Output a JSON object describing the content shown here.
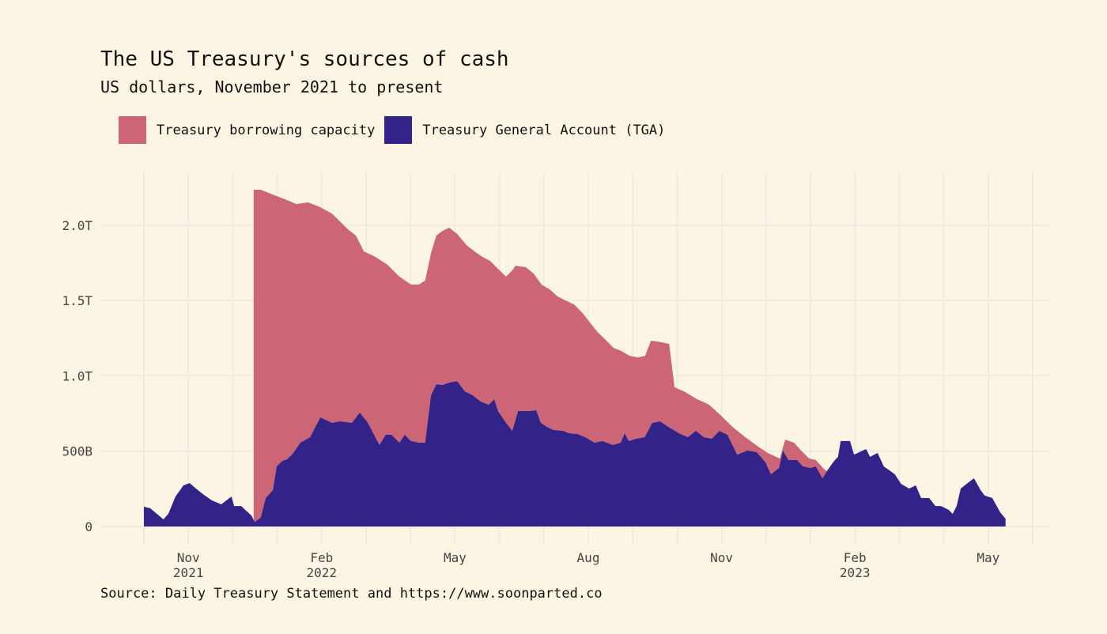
{
  "header": {
    "title": "The US Treasury's sources of cash",
    "subtitle": "US dollars, November 2021 to present"
  },
  "legend": [
    {
      "label": "Treasury borrowing capacity",
      "color": "#cc6677"
    },
    {
      "label": "Treasury General Account (TGA)",
      "color": "#332288"
    }
  ],
  "source": "Source: Daily Treasury Statement and https://www.soonparted.co",
  "chart_data": {
    "type": "area",
    "stacked": true,
    "title": "The US Treasury's sources of cash",
    "subtitle": "US dollars, November 2021 to present",
    "xlabel": "",
    "ylabel": "",
    "x_units": "months since 2021-10-01",
    "x_range": [
      -1,
      20.35
    ],
    "ylim": [
      0,
      2350
    ],
    "y_units": "billions USD",
    "grid": true,
    "legend_position": "top-left",
    "y_ticks": [
      {
        "value": 0,
        "label": "0"
      },
      {
        "value": 500,
        "label": "500B"
      },
      {
        "value": 1000,
        "label": "1.0T"
      },
      {
        "value": 1500,
        "label": "1.5T"
      },
      {
        "value": 2000,
        "label": "2.0T"
      }
    ],
    "x_ticks": [
      {
        "value": 1,
        "label": "Nov",
        "sublabel": "2021"
      },
      {
        "value": 4,
        "label": "Feb",
        "sublabel": "2022"
      },
      {
        "value": 7,
        "label": "May",
        "sublabel": ""
      },
      {
        "value": 10,
        "label": "Aug",
        "sublabel": ""
      },
      {
        "value": 13,
        "label": "Nov",
        "sublabel": ""
      },
      {
        "value": 16,
        "label": "Feb",
        "sublabel": "2023"
      },
      {
        "value": 19,
        "label": "May",
        "sublabel": ""
      }
    ],
    "x_gridlines": [
      -1,
      0,
      1,
      2,
      3,
      4,
      5,
      6,
      7,
      8,
      9,
      10,
      11,
      12,
      13,
      14,
      15,
      16,
      17,
      18,
      19,
      20
    ],
    "series": [
      {
        "name": "Treasury General Account (TGA)",
        "color": "#332288",
        "role": "bottom",
        "points": [
          [
            0.0,
            131
          ],
          [
            0.14,
            121
          ],
          [
            0.44,
            47
          ],
          [
            0.55,
            84
          ],
          [
            0.71,
            199
          ],
          [
            0.89,
            273
          ],
          [
            1.03,
            288
          ],
          [
            1.17,
            252
          ],
          [
            1.35,
            210
          ],
          [
            1.53,
            173
          ],
          [
            1.74,
            147
          ],
          [
            1.97,
            199
          ],
          [
            2.03,
            136
          ],
          [
            2.19,
            136
          ],
          [
            2.28,
            110
          ],
          [
            2.42,
            73
          ],
          [
            2.49,
            31
          ],
          [
            2.63,
            58
          ],
          [
            2.74,
            189
          ],
          [
            2.9,
            241
          ],
          [
            2.99,
            399
          ],
          [
            3.11,
            435
          ],
          [
            3.22,
            446
          ],
          [
            3.35,
            483
          ],
          [
            3.52,
            556
          ],
          [
            3.74,
            593
          ],
          [
            3.97,
            724
          ],
          [
            4.23,
            688
          ],
          [
            4.41,
            698
          ],
          [
            4.68,
            688
          ],
          [
            4.86,
            756
          ],
          [
            5.04,
            688
          ],
          [
            5.16,
            619
          ],
          [
            5.3,
            541
          ],
          [
            5.44,
            609
          ],
          [
            5.57,
            609
          ],
          [
            5.75,
            556
          ],
          [
            5.87,
            609
          ],
          [
            6.01,
            567
          ],
          [
            6.19,
            556
          ],
          [
            6.33,
            556
          ],
          [
            6.46,
            871
          ],
          [
            6.58,
            944
          ],
          [
            6.72,
            939
          ],
          [
            6.87,
            955
          ],
          [
            7.05,
            965
          ],
          [
            7.22,
            897
          ],
          [
            7.4,
            871
          ],
          [
            7.58,
            829
          ],
          [
            7.76,
            808
          ],
          [
            7.88,
            844
          ],
          [
            7.97,
            766
          ],
          [
            8.15,
            688
          ],
          [
            8.29,
            635
          ],
          [
            8.42,
            766
          ],
          [
            8.65,
            766
          ],
          [
            8.83,
            771
          ],
          [
            8.93,
            688
          ],
          [
            9.07,
            661
          ],
          [
            9.22,
            640
          ],
          [
            9.43,
            635
          ],
          [
            9.57,
            619
          ],
          [
            9.75,
            614
          ],
          [
            9.93,
            593
          ],
          [
            10.14,
            556
          ],
          [
            10.32,
            567
          ],
          [
            10.55,
            541
          ],
          [
            10.73,
            556
          ],
          [
            10.82,
            619
          ],
          [
            10.91,
            567
          ],
          [
            11.09,
            583
          ],
          [
            11.27,
            593
          ],
          [
            11.44,
            688
          ],
          [
            11.62,
            698
          ],
          [
            11.8,
            661
          ],
          [
            12.04,
            619
          ],
          [
            12.24,
            593
          ],
          [
            12.42,
            635
          ],
          [
            12.6,
            593
          ],
          [
            12.78,
            583
          ],
          [
            12.95,
            635
          ],
          [
            13.13,
            609
          ],
          [
            13.35,
            477
          ],
          [
            13.58,
            504
          ],
          [
            13.79,
            493
          ],
          [
            13.99,
            425
          ],
          [
            14.11,
            346
          ],
          [
            14.29,
            388
          ],
          [
            14.38,
            504
          ],
          [
            14.5,
            441
          ],
          [
            14.7,
            441
          ],
          [
            14.83,
            399
          ],
          [
            15.0,
            388
          ],
          [
            15.12,
            399
          ],
          [
            15.27,
            320
          ],
          [
            15.37,
            367
          ],
          [
            15.52,
            430
          ],
          [
            15.62,
            462
          ],
          [
            15.68,
            567
          ],
          [
            15.89,
            567
          ],
          [
            15.98,
            477
          ],
          [
            16.1,
            493
          ],
          [
            16.25,
            514
          ],
          [
            16.34,
            462
          ],
          [
            16.51,
            488
          ],
          [
            16.65,
            399
          ],
          [
            16.78,
            372
          ],
          [
            16.9,
            346
          ],
          [
            17.04,
            283
          ],
          [
            17.22,
            252
          ],
          [
            17.37,
            273
          ],
          [
            17.49,
            189
          ],
          [
            17.67,
            189
          ],
          [
            17.81,
            136
          ],
          [
            17.94,
            136
          ],
          [
            18.11,
            110
          ],
          [
            18.2,
            84
          ],
          [
            18.29,
            136
          ],
          [
            18.38,
            252
          ],
          [
            18.56,
            294
          ],
          [
            18.68,
            320
          ],
          [
            18.83,
            241
          ],
          [
            18.92,
            205
          ],
          [
            19.09,
            189
          ],
          [
            19.27,
            94
          ],
          [
            19.39,
            52
          ]
        ]
      },
      {
        "name": "Treasury borrowing capacity",
        "color": "#cc6677",
        "role": "stacked_on_top",
        "total_points_description": "TGA + borrowing capacity (top edge of stack)",
        "total_points": [
          [
            2.47,
            2235
          ],
          [
            2.63,
            2235
          ],
          [
            2.9,
            2203
          ],
          [
            3.17,
            2172
          ],
          [
            3.43,
            2140
          ],
          [
            3.7,
            2151
          ],
          [
            3.97,
            2119
          ],
          [
            4.23,
            2077
          ],
          [
            4.41,
            2025
          ],
          [
            4.59,
            1972
          ],
          [
            4.77,
            1931
          ],
          [
            4.95,
            1826
          ],
          [
            5.21,
            1789
          ],
          [
            5.48,
            1737
          ],
          [
            5.75,
            1658
          ],
          [
            6.01,
            1606
          ],
          [
            6.19,
            1606
          ],
          [
            6.33,
            1632
          ],
          [
            6.46,
            1815
          ],
          [
            6.58,
            1931
          ],
          [
            6.72,
            1962
          ],
          [
            6.87,
            1983
          ],
          [
            7.05,
            1941
          ],
          [
            7.26,
            1867
          ],
          [
            7.44,
            1826
          ],
          [
            7.62,
            1789
          ],
          [
            7.79,
            1763
          ],
          [
            7.97,
            1710
          ],
          [
            8.15,
            1658
          ],
          [
            8.29,
            1700
          ],
          [
            8.36,
            1731
          ],
          [
            8.59,
            1721
          ],
          [
            8.77,
            1679
          ],
          [
            8.95,
            1605
          ],
          [
            9.13,
            1574
          ],
          [
            9.31,
            1527
          ],
          [
            9.49,
            1500
          ],
          [
            9.68,
            1474
          ],
          [
            9.86,
            1421
          ],
          [
            10.04,
            1353
          ],
          [
            10.21,
            1290
          ],
          [
            10.39,
            1238
          ],
          [
            10.57,
            1185
          ],
          [
            10.75,
            1164
          ],
          [
            10.93,
            1133
          ],
          [
            11.11,
            1122
          ],
          [
            11.28,
            1133
          ],
          [
            11.41,
            1233
          ],
          [
            11.55,
            1228
          ],
          [
            11.82,
            1212
          ],
          [
            11.94,
            925
          ],
          [
            12.17,
            894
          ],
          [
            12.44,
            846
          ],
          [
            12.71,
            810
          ],
          [
            12.97,
            741
          ],
          [
            13.24,
            662
          ],
          [
            13.51,
            598
          ],
          [
            13.77,
            541
          ],
          [
            14.04,
            488
          ],
          [
            14.31,
            451
          ],
          [
            14.43,
            577
          ],
          [
            14.63,
            556
          ],
          [
            14.79,
            504
          ],
          [
            14.97,
            451
          ],
          [
            15.12,
            441
          ],
          [
            15.3,
            383
          ],
          [
            15.41,
            357
          ],
          [
            15.57,
            451
          ]
        ]
      }
    ]
  }
}
